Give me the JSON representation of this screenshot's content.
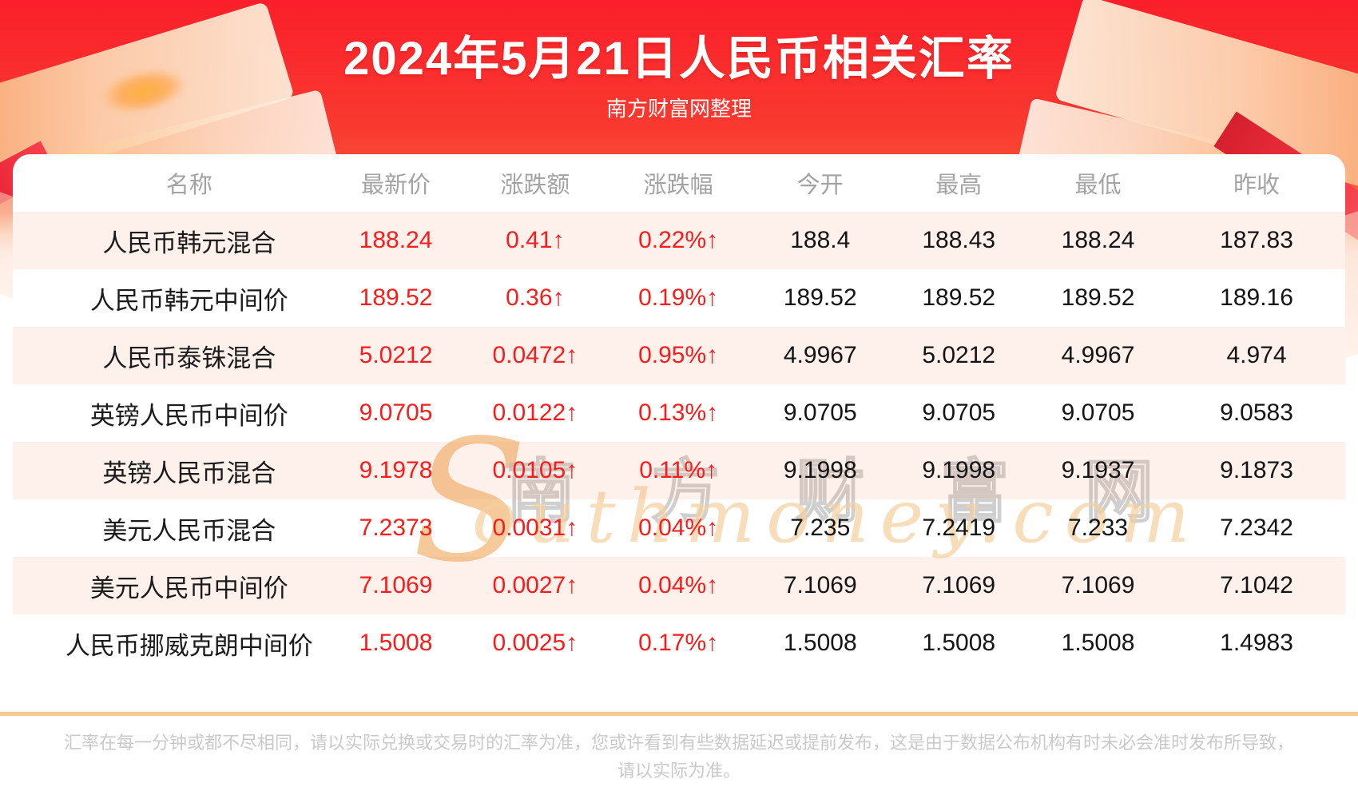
{
  "header": {
    "title": "2024年5月21日人民币相关汇率",
    "subtitle": "南方财富网整理"
  },
  "chart_data": {
    "type": "table",
    "title": "2024年5月21日人民币相关汇率",
    "columns": [
      "名称",
      "最新价",
      "涨跌额",
      "涨跌幅",
      "今开",
      "最高",
      "最低",
      "昨收"
    ],
    "rows": [
      [
        "人民币韩元混合",
        "188.24",
        "0.41↑",
        "0.22%↑",
        "188.4",
        "188.43",
        "188.24",
        "187.83"
      ],
      [
        "人民币韩元中间价",
        "189.52",
        "0.36↑",
        "0.19%↑",
        "189.52",
        "189.52",
        "189.52",
        "189.16"
      ],
      [
        "人民币泰铢混合",
        "5.0212",
        "0.0472↑",
        "0.95%↑",
        "4.9967",
        "5.0212",
        "4.9967",
        "4.974"
      ],
      [
        "英镑人民币中间价",
        "9.0705",
        "0.0122↑",
        "0.13%↑",
        "9.0705",
        "9.0705",
        "9.0705",
        "9.0583"
      ],
      [
        "英镑人民币混合",
        "9.1978",
        "0.0105↑",
        "0.11%↑",
        "9.1998",
        "9.1998",
        "9.1937",
        "9.1873"
      ],
      [
        "美元人民币混合",
        "7.2373",
        "0.0031↑",
        "0.04%↑",
        "7.235",
        "7.2419",
        "7.233",
        "7.2342"
      ],
      [
        "美元人民币中间价",
        "7.1069",
        "0.0027↑",
        "0.04%↑",
        "7.1069",
        "7.1069",
        "7.1069",
        "7.1042"
      ],
      [
        "人民币挪威克朗中间价",
        "1.5008",
        "0.0025↑",
        "0.17%↑",
        "1.5008",
        "1.5008",
        "1.5008",
        "1.4983"
      ]
    ],
    "red_value_columns": [
      1,
      2,
      3
    ],
    "alt_row_indices": [
      0,
      2,
      4,
      6
    ]
  },
  "watermark": {
    "initial": "S",
    "cjk": "南方财富网",
    "script": "outhmoney.com"
  },
  "footer": {
    "disclaimer_line1": "汇率在每一分钟或都不尽相同，请以实际兑换或交易时的汇率为准，您或许看到有些数据延迟或提前发布，这是由于数据公布机构有时未必会准时发布所导致，",
    "disclaimer_line2": "请以实际为准。"
  },
  "colors": {
    "accent_red": "#f91c1c",
    "hero_top_red": "#fa1f2a",
    "alt_row_bg": "#fdf2ec",
    "divider": "#f6ca92",
    "header_text_gray": "#a3a3a3",
    "disclaimer_gray": "#c9c9c9"
  }
}
